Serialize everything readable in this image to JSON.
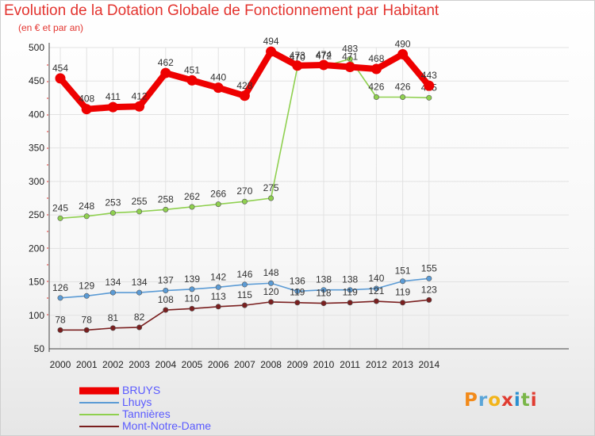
{
  "chart_data": {
    "type": "line",
    "title": "Evolution de la Dotation Globale de Fonctionnement par Habitant",
    "subtitle": "(en € et par an)",
    "xlabel": "",
    "ylabel": "",
    "x": [
      "2000",
      "2001",
      "2002",
      "2003",
      "2004",
      "2005",
      "2006",
      "2007",
      "2008",
      "2009",
      "2010",
      "2011",
      "2012",
      "2013",
      "2014"
    ],
    "ylim": [
      50,
      500
    ],
    "yticks": [
      50,
      100,
      150,
      200,
      250,
      300,
      350,
      400,
      450,
      500
    ],
    "grid": true,
    "legend_position": "bottom-left",
    "series": [
      {
        "name": "BRUYS",
        "color": "#ee0000",
        "values": [
          454,
          408,
          411,
          412,
          462,
          451,
          440,
          428,
          494,
          473,
          474,
          471,
          468,
          490,
          443
        ]
      },
      {
        "name": "Lhuys",
        "color": "#5b9bd5",
        "values": [
          126,
          129,
          134,
          134,
          137,
          139,
          142,
          146,
          148,
          136,
          138,
          138,
          140,
          151,
          155
        ]
      },
      {
        "name": "Tannières",
        "color": "#8fd04f",
        "values": [
          245,
          248,
          253,
          255,
          258,
          262,
          266,
          270,
          275,
          470,
          472,
          483,
          426,
          426,
          425
        ]
      },
      {
        "name": "Mont-Notre-Dame",
        "color": "#7a1f1f",
        "values": [
          78,
          78,
          81,
          82,
          108,
          110,
          113,
          115,
          120,
          119,
          118,
          119,
          121,
          119,
          123
        ]
      }
    ]
  },
  "legend_label_color": "#5a5aff",
  "logo": {
    "letters": [
      "P",
      "r",
      "o",
      "x",
      "i",
      "t",
      "i"
    ]
  }
}
